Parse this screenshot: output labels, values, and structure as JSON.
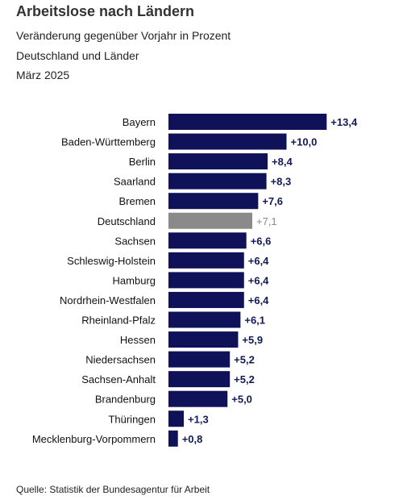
{
  "header": {
    "title": "Arbeitslose nach Ländern",
    "subtitle1": "Veränderung gegenüber Vorjahr in Prozent",
    "subtitle2": "Deutschland und Länder",
    "subtitle3": "März 2025"
  },
  "footer": {
    "source": "Quelle: Statistik der Bundesagentur für Arbeit"
  },
  "colors": {
    "bar": "#0f1258",
    "highlight": "#8a8a8a",
    "label": "#111a55",
    "highlight_label": "#8a8a8a"
  },
  "chart_data": {
    "type": "bar",
    "orientation": "horizontal",
    "categories": [
      "Bayern",
      "Baden-Württemberg",
      "Berlin",
      "Saarland",
      "Bremen",
      "Deutschland",
      "Sachsen",
      "Schleswig-Holstein",
      "Hamburg",
      "Nordrhein-Westfalen",
      "Rheinland-Pfalz",
      "Hessen",
      "Niedersachsen",
      "Sachsen-Anhalt",
      "Brandenburg",
      "Thüringen",
      "Mecklenburg-Vorpommern"
    ],
    "values": [
      13.4,
      10.0,
      8.4,
      8.3,
      7.6,
      7.1,
      6.6,
      6.4,
      6.4,
      6.4,
      6.1,
      5.9,
      5.2,
      5.2,
      5.0,
      1.3,
      0.8
    ],
    "value_labels": [
      "+13,4",
      "+10,0",
      "+8,4",
      "+8,3",
      "+7,6",
      "+7,1",
      "+6,6",
      "+6,4",
      "+6,4",
      "+6,4",
      "+6,1",
      "+5,9",
      "+5,2",
      "+5,2",
      "+5,0",
      "+1,3",
      "+0,8"
    ],
    "highlight": "Deutschland",
    "grid": false,
    "axis_visible": false
  }
}
